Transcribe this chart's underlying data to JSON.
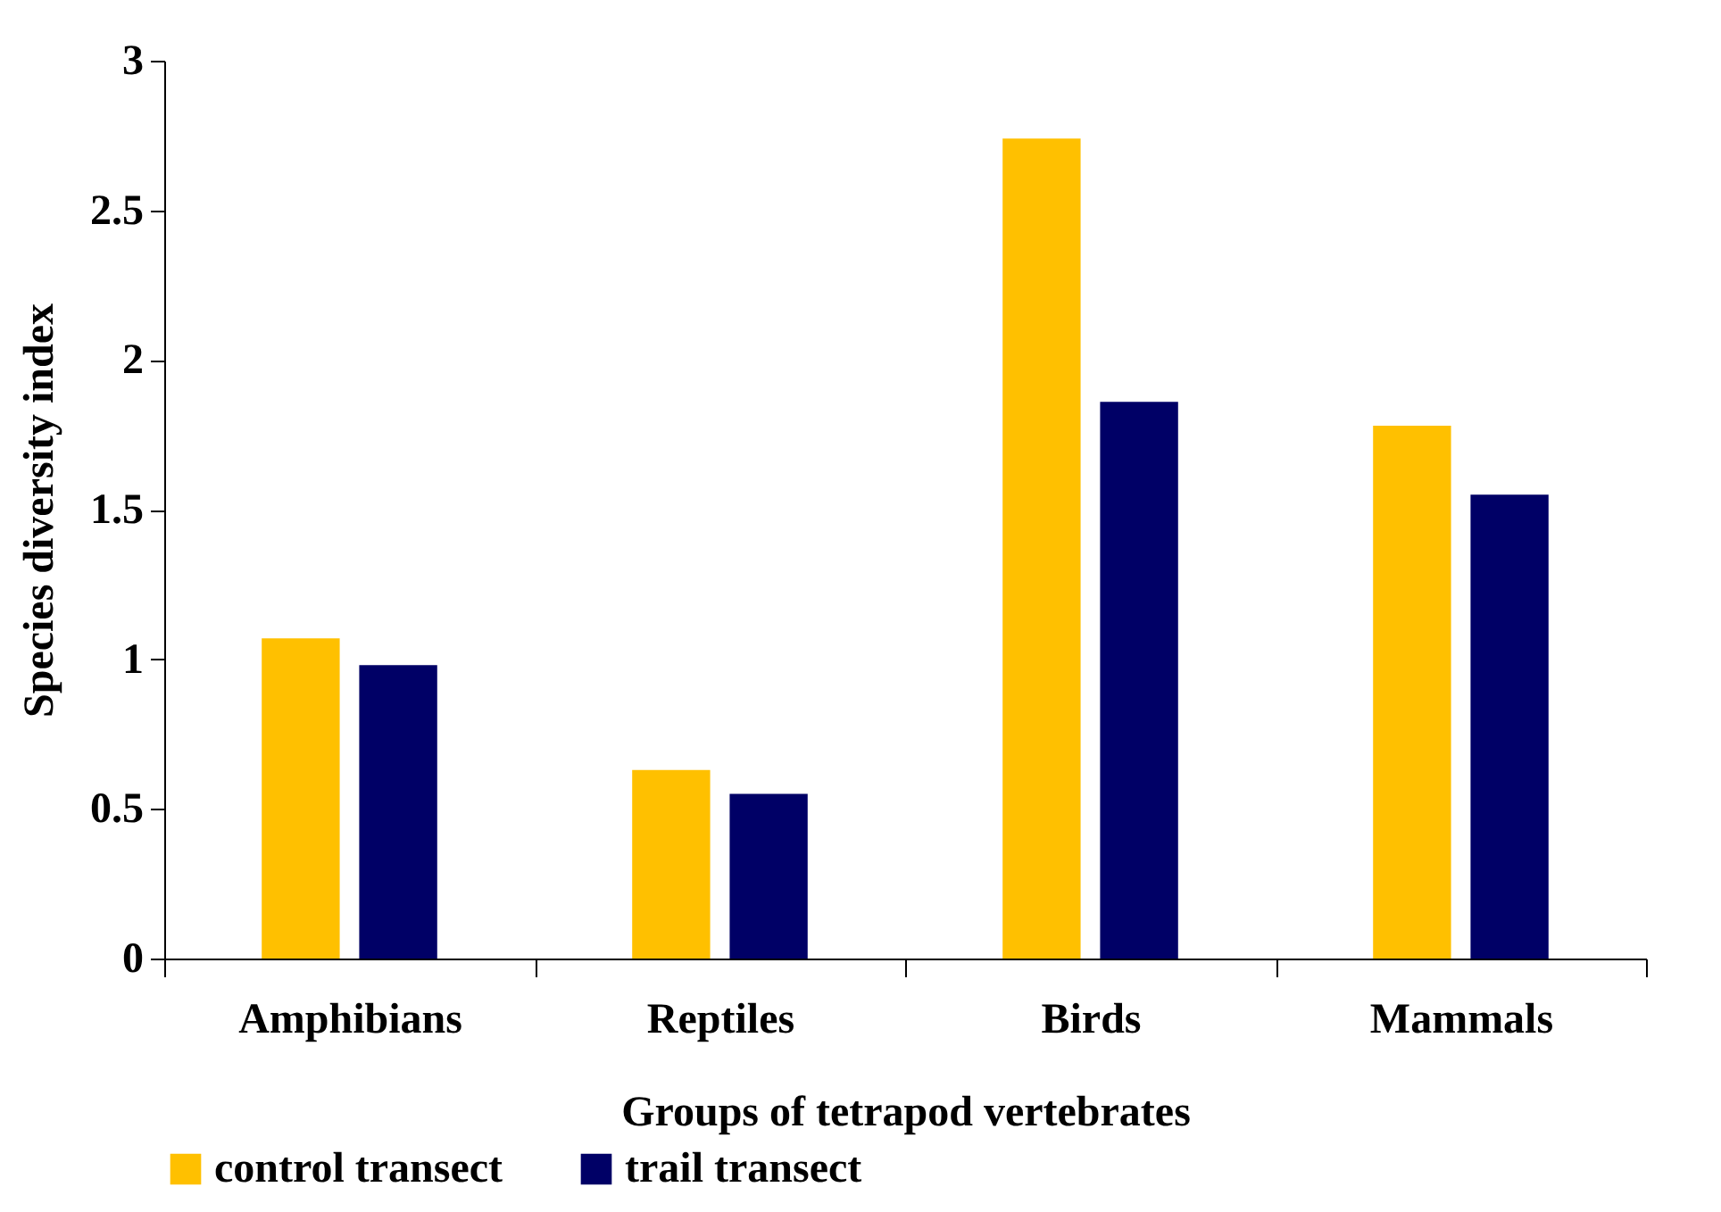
{
  "chart_data": {
    "type": "bar",
    "xlabel": "Groups of tetrapod vertebrates",
    "ylabel": "Species diversity index",
    "categories": [
      "Amphibians",
      "Reptiles",
      "Birds",
      "Mammals"
    ],
    "series": [
      {
        "name": "control transect",
        "color": "#ffc000",
        "values": [
          1.07,
          0.63,
          2.74,
          1.78
        ]
      },
      {
        "name": "trail transect",
        "color": "#000066",
        "values": [
          0.98,
          0.55,
          1.86,
          1.55
        ]
      }
    ],
    "ylim": [
      0,
      3
    ],
    "yticks": [
      0,
      0.5,
      1,
      1.5,
      2,
      2.5,
      3
    ],
    "grid": false,
    "legend": "bottom"
  }
}
